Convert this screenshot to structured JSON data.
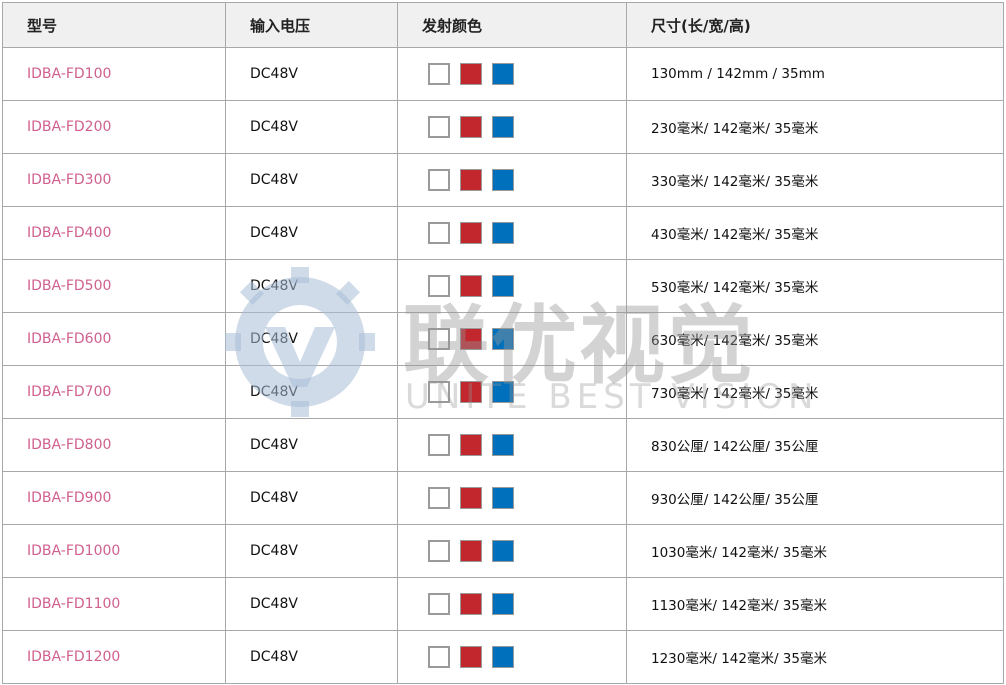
{
  "headers": [
    "型号",
    "输入电压",
    "发射颜色",
    "尺寸(长/宽/高)"
  ],
  "swatch_colors": {
    "white": "#ffffff",
    "red": "#c1272d",
    "blue": "#0070bc"
  },
  "model_color": "#d0608e",
  "rows": [
    {
      "model": "IDBA-FD100",
      "voltage": "DC48V",
      "size": "130mm / 142mm / 35mm"
    },
    {
      "model": "IDBA-FD200",
      "voltage": "DC48V",
      "size": "230毫米/ 142毫米/ 35毫米"
    },
    {
      "model": "IDBA-FD300",
      "voltage": "DC48V",
      "size": "330毫米/ 142毫米/ 35毫米"
    },
    {
      "model": "IDBA-FD400",
      "voltage": "DC48V",
      "size": "430毫米/ 142毫米/ 35毫米"
    },
    {
      "model": "IDBA-FD500",
      "voltage": "DC48V",
      "size": "530毫米/ 142毫米/ 35毫米"
    },
    {
      "model": "IDBA-FD600",
      "voltage": "DC48V",
      "size": "630毫米/ 142毫米/ 35毫米"
    },
    {
      "model": "IDBA-FD700",
      "voltage": "DC48V",
      "size": "730毫米/ 142毫米/ 35毫米"
    },
    {
      "model": "IDBA-FD800",
      "voltage": "DC48V",
      "size": "830公厘/ 142公厘/ 35公厘"
    },
    {
      "model": "IDBA-FD900",
      "voltage": "DC48V",
      "size": "930公厘/ 142公厘/ 35公厘"
    },
    {
      "model": "IDBA-FD1000",
      "voltage": "DC48V",
      "size": "1030毫米/ 142毫米/ 35毫米"
    },
    {
      "model": "IDBA-FD1100",
      "voltage": "DC48V",
      "size": "1130毫米/ 142毫米/ 35毫米"
    },
    {
      "model": "IDBA-FD1200",
      "voltage": "DC48V",
      "size": "1230毫米/ 142毫米/ 35毫米"
    }
  ],
  "watermark": {
    "cn": "联优视觉",
    "en": "UNITE BEST VISION"
  }
}
